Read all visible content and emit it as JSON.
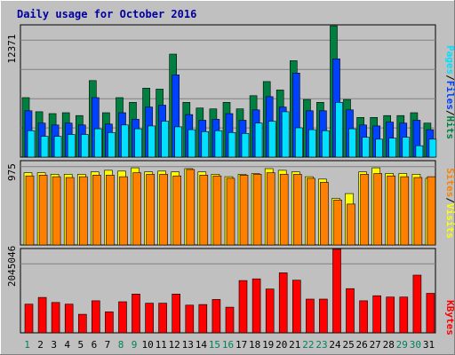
{
  "chart_data": [
    {
      "type": "bar",
      "title": "Daily usage for October 2016",
      "categories": [
        "1",
        "2",
        "3",
        "4",
        "5",
        "6",
        "7",
        "8",
        "9",
        "10",
        "11",
        "12",
        "13",
        "14",
        "15",
        "16",
        "17",
        "18",
        "19",
        "20",
        "21",
        "22",
        "23",
        "24",
        "25",
        "26",
        "27",
        "28",
        "29",
        "30",
        "31"
      ],
      "weekend_days": [
        "1",
        "8",
        "9",
        "15",
        "16",
        "22",
        "23",
        "29",
        "30"
      ],
      "ytick_label": "12371",
      "ylim": [
        0,
        14000
      ],
      "legend": [
        "Pages",
        "Files",
        "Hits"
      ],
      "series": [
        {
          "name": "Hits",
          "color": "#008040",
          "values": [
            6300,
            4800,
            4600,
            4700,
            4400,
            8100,
            4700,
            6300,
            5800,
            7300,
            7200,
            10900,
            5800,
            5200,
            5100,
            5800,
            5100,
            6500,
            8000,
            7100,
            10200,
            6100,
            5800,
            13900,
            6100,
            4200,
            4200,
            4400,
            4400,
            4700,
            3600
          ]
        },
        {
          "name": "Files",
          "color": "#0040ff",
          "values": [
            4900,
            3600,
            3400,
            3600,
            3400,
            6300,
            3500,
            4700,
            4000,
            5300,
            5500,
            8700,
            4500,
            3900,
            4000,
            4600,
            3900,
            5000,
            6400,
            5300,
            8900,
            4900,
            4900,
            10400,
            5000,
            3400,
            3300,
            3700,
            3600,
            3900,
            2900
          ]
        },
        {
          "name": "Pages",
          "color": "#00e0ff",
          "values": [
            2800,
            2200,
            2200,
            2400,
            2400,
            3000,
            2600,
            3400,
            3000,
            3300,
            3800,
            3200,
            2900,
            2700,
            2800,
            2600,
            2500,
            3600,
            3800,
            4800,
            3100,
            2900,
            2800,
            5800,
            3000,
            2100,
            1900,
            2000,
            2100,
            1200,
            1900
          ]
        }
      ]
    },
    {
      "type": "bar",
      "ytick_label": "975",
      "ylim": [
        0,
        1050
      ],
      "legend": [
        "Sites",
        "Visits"
      ],
      "series": [
        {
          "name": "Visits",
          "color": "#ffff00",
          "values": [
            900,
            900,
            880,
            880,
            880,
            910,
            930,
            920,
            960,
            910,
            920,
            910,
            950,
            910,
            880,
            850,
            880,
            890,
            950,
            930,
            910,
            850,
            820,
            580,
            640,
            910,
            960,
            890,
            890,
            880,
            830
          ]
        },
        {
          "name": "Sites",
          "color": "#ff8000",
          "values": [
            860,
            870,
            850,
            840,
            850,
            870,
            870,
            850,
            900,
            880,
            880,
            860,
            940,
            870,
            860,
            830,
            870,
            880,
            900,
            880,
            880,
            830,
            780,
            560,
            510,
            880,
            890,
            860,
            850,
            840,
            850
          ]
        }
      ]
    },
    {
      "type": "bar",
      "ytick_label": "2045046",
      "ylim": [
        0,
        2500000
      ],
      "legend": [
        "KBytes"
      ],
      "series": [
        {
          "name": "KBytes",
          "color": "#ff0000",
          "values": [
            850000,
            1050000,
            900000,
            850000,
            550000,
            950000,
            620000,
            920000,
            1150000,
            880000,
            880000,
            1150000,
            820000,
            840000,
            990000,
            760000,
            1550000,
            1600000,
            1300000,
            1780000,
            1560000,
            1000000,
            1000000,
            2480000,
            1310000,
            950000,
            1100000,
            1060000,
            1060000,
            1710000,
            1170000
          ]
        }
      ]
    }
  ]
}
